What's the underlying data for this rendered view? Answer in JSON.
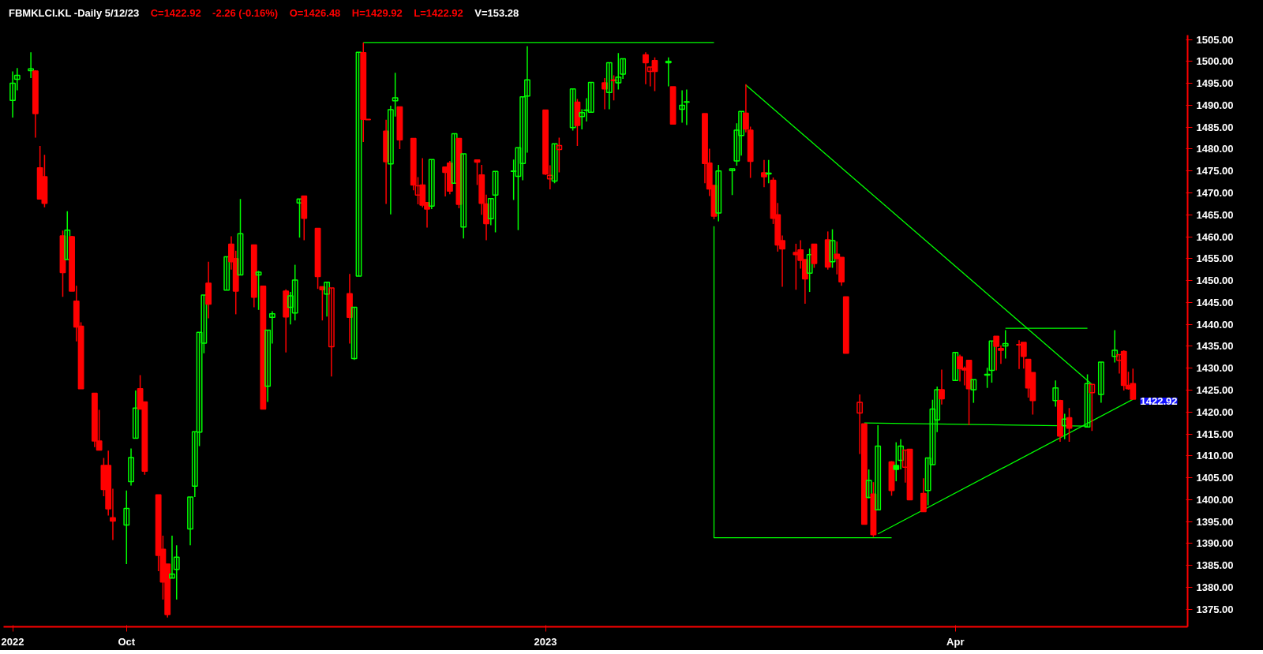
{
  "chart_data": {
    "type": "candlestick",
    "title": "FBMKLCI.KL -Daily  5/12/23",
    "subtitle": "V=153.28",
    "annotations": [
      "C=1422.92",
      "-2.26 (-0.16%)",
      "O=1426.48",
      "H=1429.92",
      "L=1422.92",
      "1422.92"
    ],
    "xlim": [
      "2022-09-06",
      "2023-05-24"
    ],
    "x": [
      "2022-09-08",
      "2022-09-09",
      "2022-09-12",
      "2022-09-13",
      "2022-09-14",
      "2022-09-15",
      "2022-09-19",
      "2022-09-20",
      "2022-09-21",
      "2022-09-22",
      "2022-09-23",
      "2022-09-26",
      "2022-09-27",
      "2022-09-28",
      "2022-09-29",
      "2022-09-30",
      "2022-10-03",
      "2022-10-04",
      "2022-10-05",
      "2022-10-06",
      "2022-10-07",
      "2022-10-10",
      "2022-10-11",
      "2022-10-12",
      "2022-10-13",
      "2022-10-14",
      "2022-10-17",
      "2022-10-18",
      "2022-10-19",
      "2022-10-20",
      "2022-10-21",
      "2022-10-25",
      "2022-10-26",
      "2022-10-27",
      "2022-10-28",
      "2022-10-31",
      "2022-11-01",
      "2022-11-02",
      "2022-11-03",
      "2022-11-04",
      "2022-11-07",
      "2022-11-08",
      "2022-11-09",
      "2022-11-10",
      "2022-11-11",
      "2022-11-14",
      "2022-11-15",
      "2022-11-16",
      "2022-11-17",
      "2022-11-21",
      "2022-11-22",
      "2022-11-23",
      "2022-11-24",
      "2022-11-25",
      "2022-11-29",
      "2022-11-30",
      "2022-12-01",
      "2022-12-02",
      "2022-12-05",
      "2022-12-06",
      "2022-12-07",
      "2022-12-08",
      "2022-12-09",
      "2022-12-12",
      "2022-12-13",
      "2022-12-14",
      "2022-12-15",
      "2022-12-16",
      "2022-12-19",
      "2022-12-20",
      "2022-12-21",
      "2022-12-22",
      "2022-12-23",
      "2022-12-27",
      "2022-12-28",
      "2022-12-29",
      "2022-12-30",
      "2023-01-03",
      "2023-01-04",
      "2023-01-05",
      "2023-01-06",
      "2023-01-09",
      "2023-01-10",
      "2023-01-11",
      "2023-01-12",
      "2023-01-13",
      "2023-01-16",
      "2023-01-17",
      "2023-01-18",
      "2023-01-19",
      "2023-01-20",
      "2023-01-25",
      "2023-01-26",
      "2023-01-27",
      "2023-01-30",
      "2023-01-31",
      "2023-02-02",
      "2023-02-03",
      "2023-02-07",
      "2023-02-08",
      "2023-02-09",
      "2023-02-10",
      "2023-02-13",
      "2023-02-14",
      "2023-02-15",
      "2023-02-16",
      "2023-02-17",
      "2023-02-20",
      "2023-02-21",
      "2023-02-22",
      "2023-02-23",
      "2023-02-24",
      "2023-02-27",
      "2023-02-28",
      "2023-03-01",
      "2023-03-02",
      "2023-03-03",
      "2023-03-06",
      "2023-03-07",
      "2023-03-08",
      "2023-03-09",
      "2023-03-10",
      "2023-03-13",
      "2023-03-14",
      "2023-03-15",
      "2023-03-16",
      "2023-03-17",
      "2023-03-20",
      "2023-03-21",
      "2023-03-22",
      "2023-03-23",
      "2023-03-24",
      "2023-03-27",
      "2023-03-28",
      "2023-03-29",
      "2023-03-30",
      "2023-03-31",
      "2023-04-03",
      "2023-04-04",
      "2023-04-05",
      "2023-04-06",
      "2023-04-07",
      "2023-04-10",
      "2023-04-11",
      "2023-04-12",
      "2023-04-13",
      "2023-04-14",
      "2023-04-17",
      "2023-04-18",
      "2023-04-19",
      "2023-04-20",
      "2023-04-25",
      "2023-04-26",
      "2023-04-27",
      "2023-04-28",
      "2023-05-02",
      "2023-05-03",
      "2023-05-05",
      "2023-05-08",
      "2023-05-09",
      "2023-05-10",
      "2023-05-11",
      "2023-05-12"
    ],
    "ohlc": [
      [
        1491.1,
        1497.7,
        1487.2,
        1495.0
      ],
      [
        1495.9,
        1498.5,
        1493.4,
        1496.8
      ],
      [
        1497.9,
        1502.1,
        1496.2,
        1498.3
      ],
      [
        1497.8,
        1498.0,
        1482.6,
        1488.1
      ],
      [
        1475.7,
        1480.7,
        1468.5,
        1468.6
      ],
      [
        1473.7,
        1478.7,
        1466.7,
        1467.6
      ],
      [
        1460.2,
        1461.4,
        1446.3,
        1451.8
      ],
      [
        1454.8,
        1465.8,
        1454.8,
        1461.5
      ],
      [
        1460.0,
        1460.2,
        1447.6,
        1447.6
      ],
      [
        1445.3,
        1448.8,
        1436.1,
        1439.4
      ],
      [
        1439.6,
        1440.5,
        1425.3,
        1425.3
      ],
      [
        1424.3,
        1424.3,
        1412.0,
        1413.4
      ],
      [
        1413.4,
        1420.5,
        1411.3,
        1411.3
      ],
      [
        1407.8,
        1409.5,
        1400.8,
        1402.3
      ],
      [
        1407.8,
        1411.2,
        1396.4,
        1397.9
      ],
      [
        1395.9,
        1402.5,
        1390.8,
        1395.1
      ],
      [
        1394.2,
        1402.1,
        1385.3,
        1398.0
      ],
      [
        1404.1,
        1411.7,
        1403.2,
        1409.6
      ],
      [
        1414.0,
        1424.9,
        1414.0,
        1420.9
      ],
      [
        1425.3,
        1428.4,
        1420.7,
        1420.7
      ],
      [
        1422.3,
        1422.3,
        1405.7,
        1406.5
      ],
      [
        1401.1,
        1401.1,
        1383.7,
        1387.3
      ],
      [
        1388.7,
        1391.8,
        1377.2,
        1381.2
      ],
      [
        1385.3,
        1385.3,
        1373.1,
        1373.8
      ],
      [
        1382.1,
        1391.8,
        1382.1,
        1383.0
      ],
      [
        1384.1,
        1389.6,
        1377.2,
        1386.9
      ],
      [
        1393.3,
        1400.6,
        1389.6,
        1400.6
      ],
      [
        1403.1,
        1415.5,
        1400.6,
        1415.5
      ],
      [
        1415.4,
        1438.2,
        1412.2,
        1438.2
      ],
      [
        1435.7,
        1446.7,
        1433.4,
        1446.7
      ],
      [
        1449.4,
        1454.3,
        1441.4,
        1444.6
      ],
      [
        1447.8,
        1455.4,
        1447.8,
        1455.4
      ],
      [
        1458.3,
        1460.1,
        1452.5,
        1454.3
      ],
      [
        1455.0,
        1456.8,
        1442.3,
        1447.6
      ],
      [
        1451.3,
        1468.6,
        1451.3,
        1460.7
      ],
      [
        1458.1,
        1458.1,
        1443.9,
        1446.2
      ],
      [
        1451.3,
        1452.2,
        1443.3,
        1451.9
      ],
      [
        1448.7,
        1448.7,
        1420.7,
        1420.7
      ],
      [
        1425.9,
        1438.7,
        1422.3,
        1438.7
      ],
      [
        1441.6,
        1443.0,
        1435.6,
        1442.4
      ],
      [
        1447.6,
        1448.0,
        1433.6,
        1441.7
      ],
      [
        1443.9,
        1447.4,
        1440.0,
        1446.5
      ],
      [
        1442.6,
        1453.6,
        1440.9,
        1450.1
      ],
      [
        1467.7,
        1468.6,
        1459.8,
        1468.6
      ],
      [
        1469.3,
        1469.3,
        1459.2,
        1464.2
      ],
      [
        1461.9,
        1461.9,
        1448.1,
        1450.9
      ],
      [
        1448.6,
        1448.6,
        1440.9,
        1447.9
      ],
      [
        1446.9,
        1449.6,
        1441.8,
        1449.6
      ],
      [
        1434.9,
        1448.3,
        1428.1,
        1448.3
      ],
      [
        1447.0,
        1451.5,
        1435.6,
        1441.6
      ],
      [
        1432.2,
        1443.9,
        1431.9,
        1443.9
      ],
      [
        1451.0,
        1502.1,
        1451.0,
        1502.1
      ],
      [
        1502.0,
        1504.3,
        1481.6,
        1486.8
      ],
      [
        1486.8,
        1486.8,
        1486.7,
        1486.7
      ],
      [
        1484.1,
        1486.7,
        1467.5,
        1477.1
      ],
      [
        1476.6,
        1489.9,
        1465.1,
        1489.0
      ],
      [
        1491.0,
        1497.4,
        1487.4,
        1491.7
      ],
      [
        1489.6,
        1489.6,
        1480.0,
        1482.1
      ],
      [
        1482.4,
        1482.4,
        1470.6,
        1471.8
      ],
      [
        1469.5,
        1473.6,
        1467.4,
        1471.6
      ],
      [
        1471.8,
        1477.9,
        1466.7,
        1467.2
      ],
      [
        1467.8,
        1467.8,
        1462.1,
        1466.3
      ],
      [
        1467.0,
        1477.6,
        1466.3,
        1477.6
      ],
      [
        1475.9,
        1475.9,
        1469.2,
        1474.7
      ],
      [
        1476.8,
        1477.3,
        1469.7,
        1470.4
      ],
      [
        1472.2,
        1483.5,
        1472.2,
        1483.5
      ],
      [
        1482.4,
        1482.4,
        1466.5,
        1467.4
      ],
      [
        1462.2,
        1478.9,
        1459.6,
        1478.9
      ],
      [
        1477.5,
        1477.5,
        1471.8,
        1477.0
      ],
      [
        1474.1,
        1476.4,
        1465.0,
        1467.6
      ],
      [
        1467.5,
        1469.6,
        1459.2,
        1463.0
      ],
      [
        1464.1,
        1468.7,
        1462.6,
        1468.7
      ],
      [
        1469.5,
        1474.9,
        1461.0,
        1474.9
      ],
      [
        1474.9,
        1477.6,
        1468.4,
        1475.0
      ],
      [
        1473.8,
        1480.3,
        1461.5,
        1480.3
      ],
      [
        1476.7,
        1491.9,
        1472.9,
        1491.9
      ],
      [
        1492.1,
        1503.5,
        1479.2,
        1495.8
      ],
      [
        1488.9,
        1488.9,
        1474.1,
        1474.3
      ],
      [
        1473.2,
        1476.3,
        1470.8,
        1474.0
      ],
      [
        1472.7,
        1481.2,
        1472.2,
        1481.2
      ],
      [
        1479.9,
        1482.6,
        1474.7,
        1480.8
      ],
      [
        1484.9,
        1493.7,
        1484.2,
        1493.7
      ],
      [
        1490.7,
        1491.4,
        1480.7,
        1485.4
      ],
      [
        1487.4,
        1489.1,
        1484.5,
        1488.3
      ],
      [
        1488.8,
        1491.6,
        1486.3,
        1488.9
      ],
      [
        1488.4,
        1495.2,
        1488.4,
        1495.2
      ],
      [
        1495.1,
        1496.2,
        1489.1,
        1493.7
      ],
      [
        1492.9,
        1499.7,
        1489.1,
        1499.7
      ],
      [
        1495.8,
        1496.8,
        1491.1,
        1495.6
      ],
      [
        1495.1,
        1501.9,
        1493.6,
        1496.4
      ],
      [
        1497.1,
        1500.6,
        1496.0,
        1500.6
      ],
      [
        1501.5,
        1502.1,
        1494.8,
        1499.7
      ],
      [
        1497.7,
        1498.7,
        1494.3,
        1498.7
      ],
      [
        1500.2,
        1500.9,
        1493.2,
        1497.7
      ],
      [
        1499.7,
        1500.9,
        1494.3,
        1500.0
      ],
      [
        1494.2,
        1494.2,
        1485.7,
        1485.7
      ],
      [
        1489.1,
        1493.4,
        1486.0,
        1490.0
      ],
      [
        1490.7,
        1493.6,
        1485.5,
        1490.8
      ],
      [
        1488.1,
        1488.1,
        1472.2,
        1476.7
      ],
      [
        1476.8,
        1480.1,
        1469.3,
        1470.9
      ],
      [
        1471.7,
        1471.7,
        1464.0,
        1464.7
      ],
      [
        1465.4,
        1476.4,
        1463.5,
        1475.0
      ],
      [
        1475.1,
        1475.5,
        1469.5,
        1475.5
      ],
      [
        1477.3,
        1485.9,
        1476.2,
        1484.3
      ],
      [
        1483.1,
        1488.6,
        1478.5,
        1488.6
      ],
      [
        1488.2,
        1494.8,
        1483.8,
        1484.6
      ],
      [
        1484.3,
        1485.1,
        1473.4,
        1477.2
      ],
      [
        1474.6,
        1477.5,
        1471.3,
        1473.7
      ],
      [
        1474.3,
        1477.5,
        1472.2,
        1474.5
      ],
      [
        1472.9,
        1473.5,
        1462.9,
        1464.2
      ],
      [
        1465.0,
        1467.7,
        1456.6,
        1458.1
      ],
      [
        1459.1,
        1460.3,
        1448.6,
        1457.2
      ],
      [
        1456.4,
        1458.4,
        1447.9,
        1455.9
      ],
      [
        1457.0,
        1459.2,
        1452.7,
        1454.6
      ],
      [
        1454.8,
        1454.8,
        1444.7,
        1450.4
      ],
      [
        1451.7,
        1457.3,
        1447.4,
        1455.9
      ],
      [
        1458.3,
        1458.3,
        1452.9,
        1453.9
      ],
      [
        1459.3,
        1461.2,
        1452.5,
        1453.1
      ],
      [
        1454.3,
        1461.7,
        1452.9,
        1459.1
      ],
      [
        1456.0,
        1458.9,
        1451.4,
        1455.0
      ],
      [
        1455.3,
        1455.3,
        1448.8,
        1449.7
      ],
      [
        1446.3,
        1446.3,
        1433.4,
        1433.4
      ],
      [
        1419.8,
        1424.0,
        1410.4,
        1422.2
      ],
      [
        1417.3,
        1417.3,
        1394.4,
        1394.4
      ],
      [
        1400.5,
        1406.9,
        1400.3,
        1404.4
      ],
      [
        1401.3,
        1404.0,
        1391.5,
        1392.0
      ],
      [
        1397.7,
        1417.0,
        1397.7,
        1412.2
      ],
      [
        1408.6,
        1408.8,
        1400.9,
        1402.1
      ],
      [
        1407.8,
        1413.1,
        1404.2,
        1406.9
      ],
      [
        1409.0,
        1413.8,
        1406.9,
        1412.2
      ],
      [
        1407.4,
        1411.3,
        1403.9,
        1411.3
      ],
      [
        1411.5,
        1411.5,
        1400.0,
        1400.0
      ],
      [
        1401.4,
        1404.9,
        1397.3,
        1397.3
      ],
      [
        1402.1,
        1409.5,
        1398.7,
        1409.5
      ],
      [
        1408.0,
        1422.8,
        1408.0,
        1420.7
      ],
      [
        1418.2,
        1425.8,
        1415.4,
        1425.1
      ],
      [
        1425.1,
        1429.7,
        1421.7,
        1423.0
      ],
      [
        1427.2,
        1433.6,
        1427.2,
        1433.6
      ],
      [
        1432.6,
        1433.1,
        1427.0,
        1429.9
      ],
      [
        1430.0,
        1430.4,
        1426.1,
        1429.6
      ],
      [
        1431.8,
        1431.8,
        1417.0,
        1425.3
      ],
      [
        1425.1,
        1427.4,
        1422.1,
        1427.4
      ],
      [
        1428.4,
        1430.1,
        1425.5,
        1428.6
      ],
      [
        1429.5,
        1436.2,
        1426.7,
        1436.2
      ],
      [
        1437.3,
        1437.3,
        1429.5,
        1435.0
      ],
      [
        1434.5,
        1435.2,
        1431.0,
        1434.1
      ],
      [
        1435.1,
        1438.7,
        1432.2,
        1435.6
      ],
      [
        1435.4,
        1436.4,
        1429.8,
        1435.3
      ],
      [
        1435.9,
        1435.9,
        1429.9,
        1432.7
      ],
      [
        1432.0,
        1432.0,
        1423.3,
        1425.5
      ],
      [
        1429.0,
        1429.0,
        1419.4,
        1422.6
      ],
      [
        1422.6,
        1427.2,
        1421.2,
        1425.5
      ],
      [
        1422.6,
        1422.8,
        1413.2,
        1414.5
      ],
      [
        1416.9,
        1419.6,
        1413.8,
        1418.4
      ],
      [
        1418.7,
        1420.9,
        1413.2,
        1416.3
      ],
      [
        1416.6,
        1428.6,
        1416.6,
        1426.5
      ],
      [
        1424.4,
        1426.3,
        1415.7,
        1426.3
      ],
      [
        1424.0,
        1431.4,
        1422.1,
        1431.4
      ],
      [
        1432.7,
        1438.7,
        1431.3,
        1434.1
      ],
      [
        1431.8,
        1433.1,
        1428.8,
        1433.1
      ],
      [
        1433.8,
        1434.1,
        1424.9,
        1426.1
      ],
      [
        1426.1,
        1429.2,
        1425.1,
        1425.3
      ],
      [
        1426.48,
        1429.92,
        1422.92,
        1422.92
      ]
    ],
    "colors": [
      "#00ff00",
      "#00ff00",
      "#00ff00",
      "#ff0000",
      "#ff0000",
      "#ff0000",
      "#ff0000",
      "#00ff00",
      "#ff0000",
      "#ff0000",
      "#ff0000",
      "#ff0000",
      "#ff0000",
      "#ff0000",
      "#ff0000",
      "#ff0000",
      "#00ff00",
      "#00ff00",
      "#00ff00",
      "#ff0000",
      "#ff0000",
      "#ff0000",
      "#ff0000",
      "#ff0000",
      "#00ff00",
      "#00ff00",
      "#00ff00",
      "#00ff00",
      "#00ff00",
      "#00ff00",
      "#ff0000",
      "#00ff00",
      "#ff0000",
      "#ff0000",
      "#00ff00",
      "#ff0000",
      "#00ff00",
      "#ff0000",
      "#00ff00",
      "#00ff00",
      "#ff0000",
      "#00ff00",
      "#00ff00",
      "#00ff00",
      "#ff0000",
      "#ff0000",
      "#ff0000",
      "#00ff00",
      "#ff0000",
      "#ff0000",
      "#00ff00",
      "#00ff00",
      "#ff0000",
      "#ff0000",
      "#ff0000",
      "#00ff00",
      "#00ff00",
      "#ff0000",
      "#ff0000",
      "#ff0000",
      "#ff0000",
      "#ff0000",
      "#00ff00",
      "#ff0000",
      "#ff0000",
      "#00ff00",
      "#ff0000",
      "#00ff00",
      "#ff0000",
      "#ff0000",
      "#ff0000",
      "#00ff00",
      "#00ff00",
      "#00ff00",
      "#00ff00",
      "#00ff00",
      "#00ff00",
      "#ff0000",
      "#ff0000",
      "#00ff00",
      "#ff0000",
      "#00ff00",
      "#ff0000",
      "#00ff00",
      "#00ff00",
      "#00ff00",
      "#ff0000",
      "#00ff00",
      "#ff0000",
      "#00ff00",
      "#00ff00",
      "#ff0000",
      "#ff0000",
      "#ff0000",
      "#00ff00",
      "#ff0000",
      "#00ff00",
      "#00ff00",
      "#ff0000",
      "#ff0000",
      "#ff0000",
      "#00ff00",
      "#00ff00",
      "#00ff00",
      "#00ff00",
      "#ff0000",
      "#ff0000",
      "#ff0000",
      "#00ff00",
      "#ff0000",
      "#ff0000",
      "#ff0000",
      "#ff0000",
      "#ff0000",
      "#ff0000",
      "#00ff00",
      "#ff0000",
      "#ff0000",
      "#00ff00",
      "#ff0000",
      "#ff0000",
      "#ff0000",
      "#ff0000",
      "#ff0000",
      "#00ff00",
      "#ff0000",
      "#00ff00",
      "#ff0000",
      "#00ff00",
      "#00ff00",
      "#ff0000",
      "#ff0000",
      "#ff0000",
      "#00ff00",
      "#00ff00",
      "#00ff00",
      "#ff0000",
      "#00ff00",
      "#ff0000",
      "#ff0000",
      "#ff0000",
      "#00ff00",
      "#00ff00",
      "#00ff00",
      "#ff0000",
      "#ff0000",
      "#00ff00",
      "#ff0000",
      "#ff0000",
      "#ff0000",
      "#ff0000",
      "#00ff00",
      "#ff0000",
      "#00ff00",
      "#ff0000",
      "#00ff00",
      "#ff0000",
      "#00ff00",
      "#00ff00",
      "#ff0000",
      "#ff0000",
      "#ff0000",
      "#ff0000"
    ],
    "series": [
      {
        "type": "line",
        "color": "#00ff00",
        "x": [
          "2022-11-24",
          "2023-02-09"
        ],
        "values": [
          1504.3,
          1504.3
        ]
      },
      {
        "type": "line",
        "color": "#00ff00",
        "x": [
          "2023-02-09",
          "2023-02-09",
          "2023-03-20"
        ],
        "values": [
          1462.4,
          1391.3,
          1391.3
        ]
      },
      {
        "type": "line",
        "color": "#00ff00",
        "x": [
          "2023-02-16",
          "2023-05-03"
        ],
        "values": [
          1494.6,
          1426.3
        ]
      },
      {
        "type": "line",
        "color": "#00ff00",
        "x": [
          "2023-03-17",
          "2023-05-12"
        ],
        "values": [
          1392.2,
          1422.9
        ]
      },
      {
        "type": "line",
        "color": "#00ff00",
        "x": [
          "2023-03-14",
          "2023-05-02"
        ],
        "values": [
          1417.5,
          1416.8
        ]
      },
      {
        "type": "line",
        "color": "#00ff00",
        "x": [
          "2023-04-14",
          "2023-05-02"
        ],
        "values": [
          1439.1,
          1439.1
        ]
      }
    ],
    "ylim": [
      1371,
      1506
    ],
    "yticks": [
      {
        "value": 1375,
        "label": "1375.00"
      },
      {
        "value": 1380,
        "label": "1380.00"
      },
      {
        "value": 1385,
        "label": "1385.00"
      },
      {
        "value": 1390,
        "label": "1390.00"
      },
      {
        "value": 1395,
        "label": "1395.00"
      },
      {
        "value": 1400,
        "label": "1400.00"
      },
      {
        "value": 1405,
        "label": "1405.00"
      },
      {
        "value": 1410,
        "label": "1410.00"
      },
      {
        "value": 1415,
        "label": "1415.00"
      },
      {
        "value": 1420,
        "label": "1420.00"
      },
      {
        "value": 1425,
        "label": "1425.00"
      },
      {
        "value": 1430,
        "label": "1430.00"
      },
      {
        "value": 1435,
        "label": "1435.00"
      },
      {
        "value": 1440,
        "label": "1440.00"
      },
      {
        "value": 1445,
        "label": "1445.00"
      },
      {
        "value": 1450,
        "label": "1450.00"
      },
      {
        "value": 1455,
        "label": "1455.00"
      },
      {
        "value": 1460,
        "label": "1460.00"
      },
      {
        "value": 1465,
        "label": "1465.00"
      },
      {
        "value": 1470,
        "label": "1470.00"
      },
      {
        "value": 1475,
        "label": "1475.00"
      },
      {
        "value": 1480,
        "label": "1480.00"
      },
      {
        "value": 1485,
        "label": "1485.00"
      },
      {
        "value": 1490,
        "label": "1490.00"
      },
      {
        "value": 1495,
        "label": "1495.00"
      },
      {
        "value": 1500,
        "label": "1500.00"
      },
      {
        "value": 1505,
        "label": "1505.00"
      }
    ],
    "xticks": [
      {
        "value": "2022-09-08",
        "label": "2022"
      },
      {
        "value": "2022-10-03",
        "label": "Oct"
      },
      {
        "value": "2023-01-03",
        "label": "2023"
      },
      {
        "value": "2023-04-03",
        "label": "Apr"
      }
    ]
  }
}
